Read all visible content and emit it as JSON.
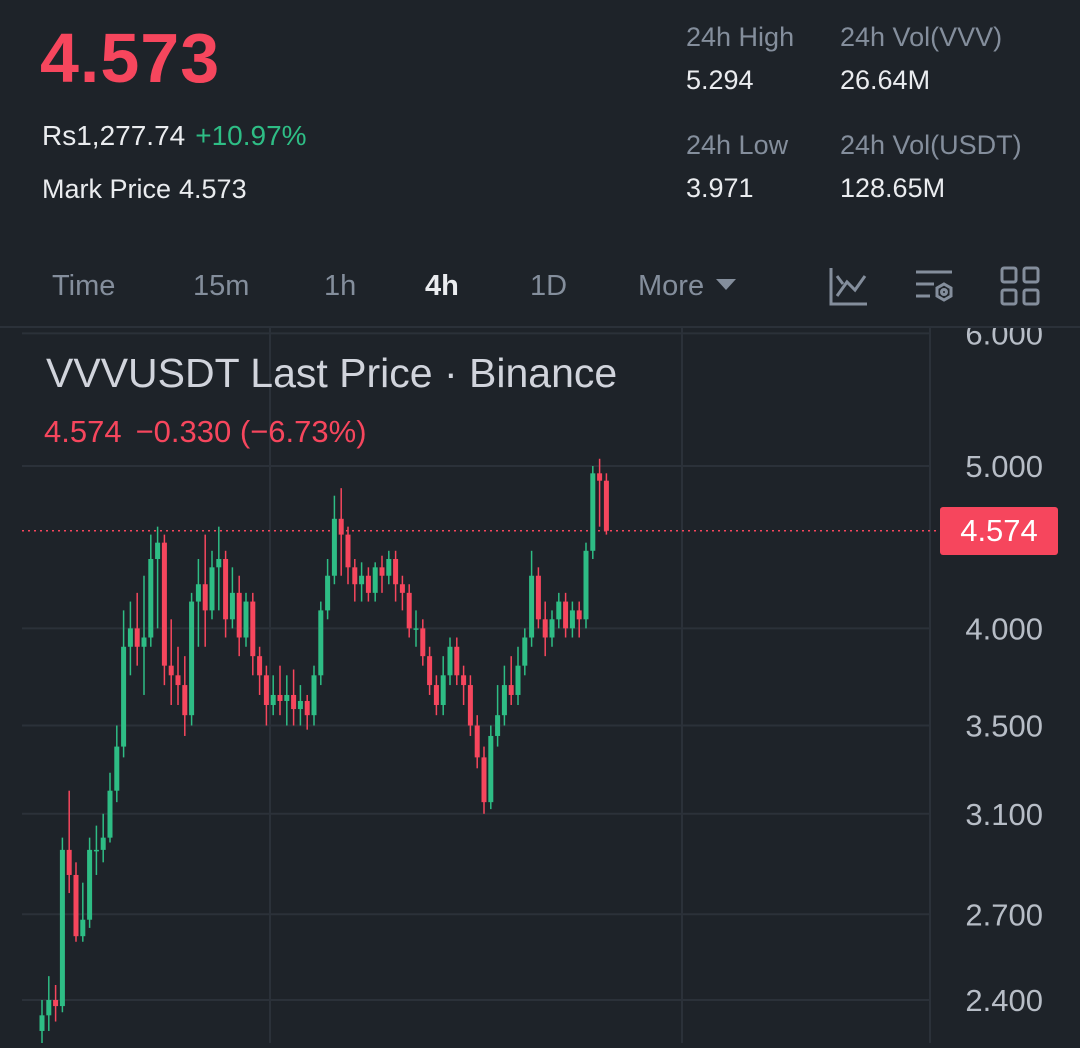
{
  "header": {
    "last_price": "4.573",
    "fiat_value": "Rs1,277.74",
    "change_pct": "+10.97%",
    "mark_label": "Mark Price",
    "mark_value": "4.573",
    "stats": {
      "high_label": "24h High",
      "high_value": "5.294",
      "vol_base_label": "24h Vol(VVV)",
      "vol_base_value": "26.64M",
      "low_label": "24h Low",
      "low_value": "3.971",
      "vol_quote_label": "24h Vol(USDT)",
      "vol_quote_value": "128.65M"
    }
  },
  "tabs": [
    {
      "label": "Time"
    },
    {
      "label": "15m"
    },
    {
      "label": "1h"
    },
    {
      "label": "4h",
      "active": true
    },
    {
      "label": "1D"
    },
    {
      "label": "More"
    }
  ],
  "toolbar_icons": [
    "indicator-chart-icon",
    "chart-settings-icon",
    "layout-grid-icon"
  ],
  "colors": {
    "up": "#2ebd85",
    "down": "#f6465d",
    "bg": "#1e2329",
    "grid": "#2b3139"
  },
  "chart_data": {
    "type": "candlestick",
    "title": "VVVUSDT Last Price · Binance",
    "ohlc_last": "4.574",
    "ohlc_change": "−0.330 (−6.73%)",
    "current_price_label": "4.574",
    "current_price": 4.574,
    "y_ticks": [
      "6.000",
      "5.000",
      "4.000",
      "3.500",
      "3.100",
      "2.700",
      "2.400"
    ],
    "y_scale": "log",
    "grid": true,
    "candles": [
      [
        2.3,
        2.35,
        2.25,
        2.4
      ],
      [
        2.35,
        2.4,
        2.3,
        2.48
      ],
      [
        2.4,
        2.38,
        2.33,
        2.45
      ],
      [
        2.38,
        2.95,
        2.36,
        3.0
      ],
      [
        2.95,
        2.85,
        2.78,
        3.2
      ],
      [
        2.85,
        2.62,
        2.6,
        2.9
      ],
      [
        2.62,
        2.68,
        2.6,
        2.82
      ],
      [
        2.68,
        2.95,
        2.65,
        3.0
      ],
      [
        2.95,
        2.95,
        2.85,
        3.05
      ],
      [
        2.95,
        3.0,
        2.9,
        3.1
      ],
      [
        3.0,
        3.2,
        2.98,
        3.28
      ],
      [
        3.2,
        3.4,
        3.15,
        3.5
      ],
      [
        3.4,
        3.9,
        3.35,
        4.1
      ],
      [
        3.9,
        4.0,
        3.75,
        4.15
      ],
      [
        4.0,
        3.9,
        3.8,
        4.2
      ],
      [
        3.9,
        3.95,
        3.65,
        4.3
      ],
      [
        3.95,
        4.4,
        3.9,
        4.55
      ],
      [
        4.4,
        4.5,
        4.0,
        4.6
      ],
      [
        4.5,
        3.8,
        3.7,
        4.55
      ],
      [
        3.8,
        3.75,
        3.6,
        4.05
      ],
      [
        3.75,
        3.7,
        3.6,
        3.9
      ],
      [
        3.7,
        3.55,
        3.45,
        3.85
      ],
      [
        3.55,
        4.15,
        3.5,
        4.2
      ],
      [
        4.15,
        4.25,
        3.9,
        4.4
      ],
      [
        4.25,
        4.1,
        3.9,
        4.55
      ],
      [
        4.1,
        4.35,
        4.05,
        4.45
      ],
      [
        4.35,
        4.4,
        4.1,
        4.6
      ],
      [
        4.4,
        4.05,
        3.95,
        4.45
      ],
      [
        4.05,
        4.2,
        4.0,
        4.35
      ],
      [
        4.2,
        3.95,
        3.85,
        4.3
      ],
      [
        3.95,
        4.15,
        3.9,
        4.2
      ],
      [
        4.15,
        3.85,
        3.75,
        4.2
      ],
      [
        3.85,
        3.75,
        3.65,
        3.9
      ],
      [
        3.75,
        3.6,
        3.5,
        3.8
      ],
      [
        3.6,
        3.65,
        3.55,
        3.75
      ],
      [
        3.65,
        3.62,
        3.55,
        3.8
      ],
      [
        3.62,
        3.65,
        3.5,
        3.75
      ],
      [
        3.65,
        3.58,
        3.5,
        3.78
      ],
      [
        3.58,
        3.62,
        3.5,
        3.7
      ],
      [
        3.62,
        3.55,
        3.48,
        3.65
      ],
      [
        3.55,
        3.75,
        3.5,
        3.8
      ],
      [
        3.75,
        4.1,
        3.7,
        4.15
      ],
      [
        4.1,
        4.3,
        4.05,
        4.4
      ],
      [
        4.3,
        4.65,
        4.25,
        4.8
      ],
      [
        4.65,
        4.55,
        4.3,
        4.85
      ],
      [
        4.55,
        4.35,
        4.25,
        4.6
      ],
      [
        4.35,
        4.25,
        4.15,
        4.4
      ],
      [
        4.25,
        4.3,
        4.15,
        4.38
      ],
      [
        4.3,
        4.2,
        4.15,
        4.35
      ],
      [
        4.2,
        4.35,
        4.15,
        4.38
      ],
      [
        4.35,
        4.3,
        4.2,
        4.42
      ],
      [
        4.3,
        4.4,
        4.25,
        4.45
      ],
      [
        4.4,
        4.25,
        4.15,
        4.45
      ],
      [
        4.25,
        4.2,
        4.1,
        4.3
      ],
      [
        4.2,
        4.0,
        3.95,
        4.25
      ],
      [
        4.0,
        4.0,
        3.9,
        4.1
      ],
      [
        4.0,
        3.85,
        3.8,
        4.05
      ],
      [
        3.85,
        3.7,
        3.65,
        3.9
      ],
      [
        3.7,
        3.6,
        3.55,
        3.75
      ],
      [
        3.6,
        3.75,
        3.55,
        3.85
      ],
      [
        3.75,
        3.9,
        3.7,
        3.95
      ],
      [
        3.9,
        3.75,
        3.7,
        3.95
      ],
      [
        3.75,
        3.7,
        3.6,
        3.8
      ],
      [
        3.7,
        3.5,
        3.45,
        3.75
      ],
      [
        3.5,
        3.35,
        3.3,
        3.55
      ],
      [
        3.35,
        3.15,
        3.1,
        3.4
      ],
      [
        3.15,
        3.45,
        3.12,
        3.5
      ],
      [
        3.45,
        3.55,
        3.4,
        3.7
      ],
      [
        3.55,
        3.7,
        3.5,
        3.8
      ],
      [
        3.7,
        3.65,
        3.6,
        3.85
      ],
      [
        3.65,
        3.8,
        3.6,
        3.9
      ],
      [
        3.8,
        3.95,
        3.75,
        4.0
      ],
      [
        3.95,
        4.3,
        3.9,
        4.45
      ],
      [
        4.3,
        4.05,
        4.0,
        4.35
      ],
      [
        4.05,
        3.95,
        3.85,
        4.15
      ],
      [
        3.95,
        4.05,
        3.9,
        4.1
      ],
      [
        4.05,
        4.15,
        4.0,
        4.2
      ],
      [
        4.15,
        4.0,
        3.95,
        4.2
      ],
      [
        4.0,
        4.1,
        3.95,
        4.15
      ],
      [
        4.1,
        4.05,
        3.95,
        4.15
      ],
      [
        4.05,
        4.45,
        4.0,
        4.5
      ],
      [
        4.45,
        4.95,
        4.4,
        5.0
      ],
      [
        4.95,
        4.9,
        4.6,
        5.05
      ],
      [
        4.9,
        4.574,
        4.55,
        4.95
      ]
    ]
  }
}
